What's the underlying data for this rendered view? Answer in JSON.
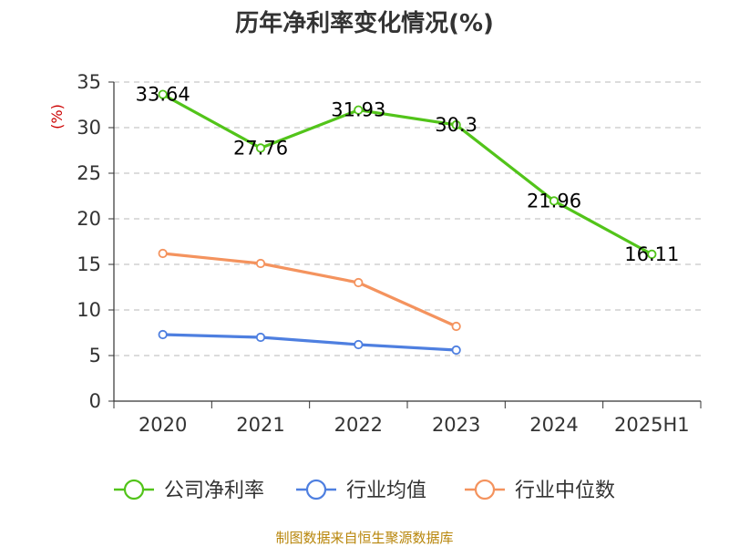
{
  "chart_data": {
    "type": "line",
    "title": "历年净利率变化情况(%)",
    "ylabel": "(%)",
    "categories": [
      "2020",
      "2021",
      "2022",
      "2023",
      "2024",
      "2025H1"
    ],
    "ylim": [
      0,
      35
    ],
    "yticks": [
      0,
      5,
      10,
      15,
      20,
      25,
      30,
      35
    ],
    "grid": "horizontal-dashed",
    "legend_position": "bottom",
    "series": [
      {
        "name": "公司净利率",
        "color": "#52c41a",
        "values": [
          33.64,
          27.76,
          31.93,
          30.3,
          21.96,
          16.11
        ],
        "labels": [
          "33.64",
          "27.76",
          "31.93",
          "30.3",
          "21.96",
          "16.11"
        ]
      },
      {
        "name": "行业均值",
        "color": "#4e7fe0",
        "values": [
          7.3,
          7.0,
          6.2,
          5.6,
          null,
          null
        ]
      },
      {
        "name": "行业中位数",
        "color": "#f4935e",
        "values": [
          16.2,
          15.1,
          13.0,
          8.2,
          null,
          null
        ]
      }
    ],
    "source": "制图数据来自恒生聚源数据库"
  }
}
